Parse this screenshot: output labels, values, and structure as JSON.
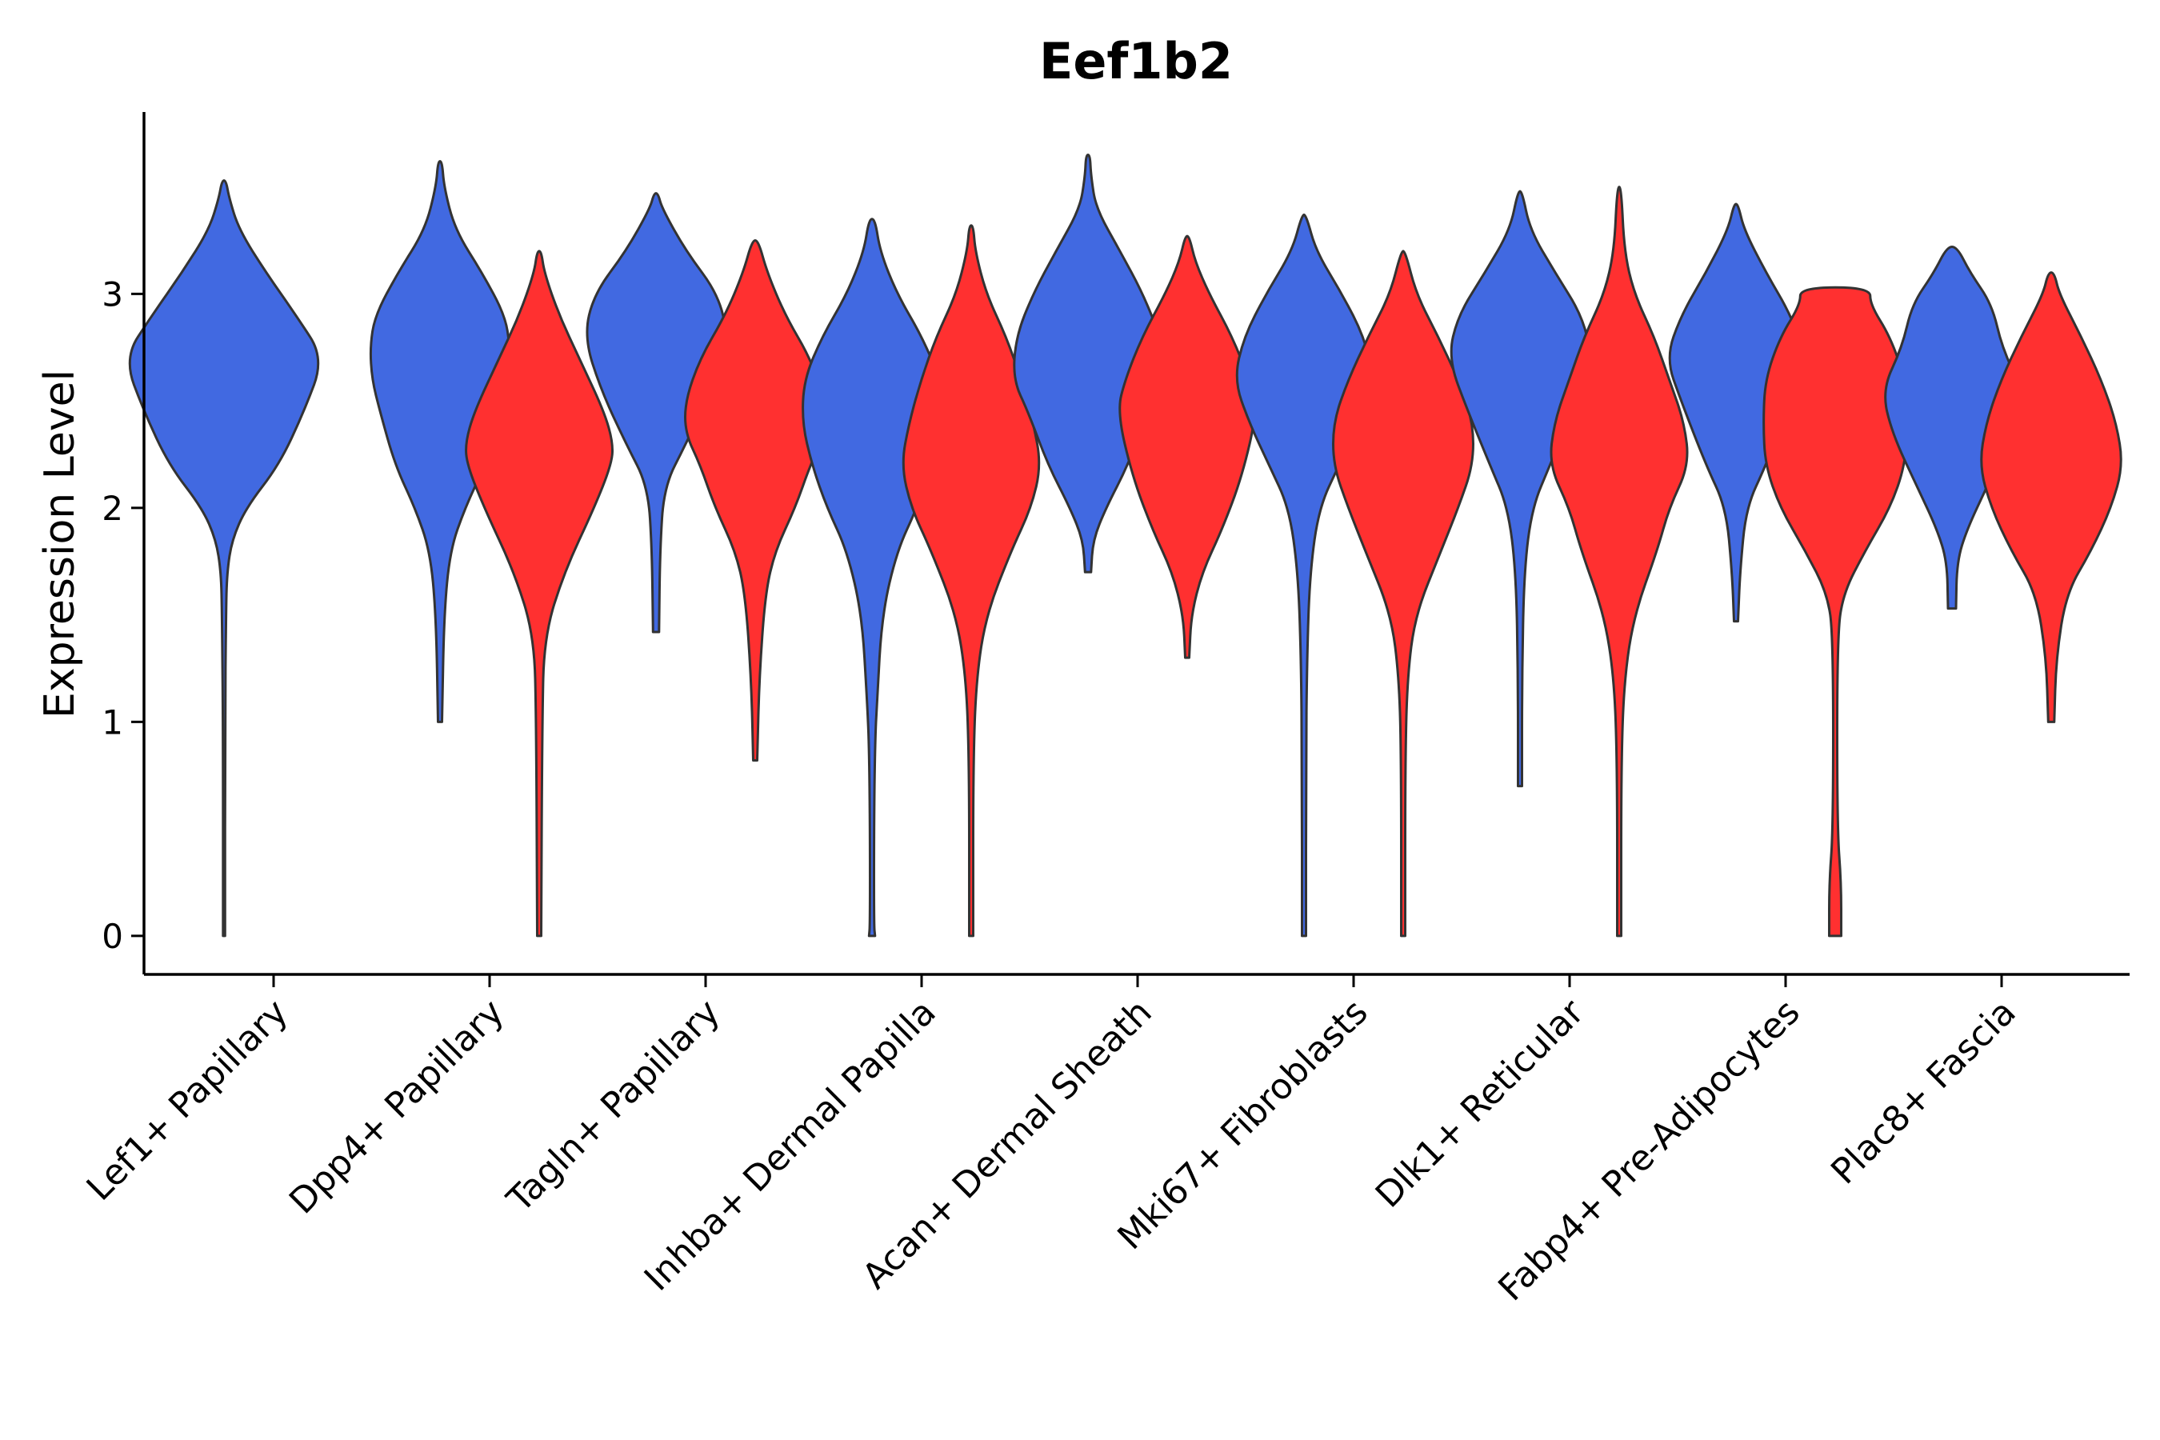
{
  "chart_data": {
    "type": "violin",
    "title": "Eef1b2",
    "xlabel": "",
    "ylabel": "Expression Level",
    "ylim": [
      -0.18,
      3.85
    ],
    "yticks": [
      0,
      1,
      2,
      3
    ],
    "grid": false,
    "legend": "none",
    "group_colors": [
      "#4169E1",
      "#FF3030"
    ],
    "categories": [
      "Lef1+ Papillary",
      "Dpp4+ Papillary",
      "Tagln+ Papillary",
      "Inhba+ Dermal Papilla",
      "Acan+ Dermal Sheath",
      "Mki67+ Fibroblasts",
      "Dlk1+ Reticular",
      "Fabp4+ Pre-Adipocytes",
      "Plac8+ Fascia"
    ],
    "violins": [
      {
        "category": 0,
        "group": 0,
        "min": 0.0,
        "max": 3.53,
        "profile": [
          [
            0,
            0.01
          ],
          [
            1.0,
            0.01
          ],
          [
            1.5,
            0.02
          ],
          [
            1.7,
            0.03
          ],
          [
            1.85,
            0.08
          ],
          [
            2.0,
            0.22
          ],
          [
            2.2,
            0.55
          ],
          [
            2.45,
            0.8
          ],
          [
            2.7,
            1.0
          ],
          [
            2.9,
            0.72
          ],
          [
            3.1,
            0.42
          ],
          [
            3.3,
            0.15
          ],
          [
            3.45,
            0.05
          ],
          [
            3.53,
            0.02
          ]
        ]
      },
      {
        "category": 1,
        "group": 0,
        "min": 1.0,
        "max": 3.62,
        "profile": [
          [
            1.0,
            0.02
          ],
          [
            1.5,
            0.04
          ],
          [
            1.8,
            0.1
          ],
          [
            2.0,
            0.25
          ],
          [
            2.2,
            0.45
          ],
          [
            2.45,
            0.6
          ],
          [
            2.6,
            0.68
          ],
          [
            2.75,
            0.7
          ],
          [
            2.9,
            0.65
          ],
          [
            3.1,
            0.42
          ],
          [
            3.3,
            0.15
          ],
          [
            3.5,
            0.04
          ],
          [
            3.62,
            0.02
          ]
        ]
      },
      {
        "category": 1,
        "group": 1,
        "min": 0.0,
        "max": 3.2,
        "profile": [
          [
            0,
            0.02
          ],
          [
            1.0,
            0.03
          ],
          [
            1.4,
            0.05
          ],
          [
            1.7,
            0.25
          ],
          [
            2.0,
            0.55
          ],
          [
            2.2,
            0.72
          ],
          [
            2.3,
            0.74
          ],
          [
            2.45,
            0.65
          ],
          [
            2.7,
            0.4
          ],
          [
            2.9,
            0.2
          ],
          [
            3.1,
            0.05
          ],
          [
            3.2,
            0.02
          ]
        ]
      },
      {
        "category": 2,
        "group": 0,
        "min": 1.42,
        "max": 3.47,
        "profile": [
          [
            1.42,
            0.03
          ],
          [
            1.8,
            0.04
          ],
          [
            2.1,
            0.08
          ],
          [
            2.3,
            0.3
          ],
          [
            2.55,
            0.55
          ],
          [
            2.8,
            0.72
          ],
          [
            3.0,
            0.62
          ],
          [
            3.2,
            0.3
          ],
          [
            3.4,
            0.06
          ],
          [
            3.47,
            0.02
          ]
        ]
      },
      {
        "category": 2,
        "group": 1,
        "min": 0.82,
        "max": 3.25,
        "profile": [
          [
            0.82,
            0.02
          ],
          [
            1.2,
            0.04
          ],
          [
            1.6,
            0.1
          ],
          [
            1.8,
            0.2
          ],
          [
            2.0,
            0.4
          ],
          [
            2.2,
            0.55
          ],
          [
            2.35,
            0.7
          ],
          [
            2.5,
            0.7
          ],
          [
            2.7,
            0.55
          ],
          [
            2.9,
            0.3
          ],
          [
            3.1,
            0.12
          ],
          [
            3.25,
            0.03
          ]
        ]
      },
      {
        "category": 3,
        "group": 0,
        "min": 0.0,
        "max": 3.35,
        "profile": [
          [
            0,
            0.03
          ],
          [
            0.05,
            0.02
          ],
          [
            0.5,
            0.02
          ],
          [
            0.9,
            0.03
          ],
          [
            1.1,
            0.05
          ],
          [
            1.5,
            0.1
          ],
          [
            1.8,
            0.25
          ],
          [
            2.0,
            0.45
          ],
          [
            2.2,
            0.6
          ],
          [
            2.4,
            0.7
          ],
          [
            2.6,
            0.68
          ],
          [
            2.8,
            0.5
          ],
          [
            3.0,
            0.25
          ],
          [
            3.2,
            0.08
          ],
          [
            3.35,
            0.03
          ]
        ]
      },
      {
        "category": 3,
        "group": 1,
        "min": 0.0,
        "max": 3.32,
        "profile": [
          [
            0,
            0.02
          ],
          [
            0.05,
            0.02
          ],
          [
            0.8,
            0.02
          ],
          [
            1.2,
            0.05
          ],
          [
            1.5,
            0.15
          ],
          [
            1.8,
            0.4
          ],
          [
            2.0,
            0.6
          ],
          [
            2.2,
            0.7
          ],
          [
            2.4,
            0.62
          ],
          [
            2.6,
            0.5
          ],
          [
            2.8,
            0.35
          ],
          [
            3.0,
            0.15
          ],
          [
            3.2,
            0.04
          ],
          [
            3.32,
            0.02
          ]
        ]
      },
      {
        "category": 4,
        "group": 0,
        "min": 1.7,
        "max": 3.65,
        "profile": [
          [
            1.7,
            0.03
          ],
          [
            1.85,
            0.05
          ],
          [
            2.0,
            0.18
          ],
          [
            2.2,
            0.4
          ],
          [
            2.45,
            0.6
          ],
          [
            2.6,
            0.75
          ],
          [
            2.8,
            0.72
          ],
          [
            3.0,
            0.55
          ],
          [
            3.2,
            0.32
          ],
          [
            3.4,
            0.08
          ],
          [
            3.55,
            0.03
          ],
          [
            3.65,
            0.02
          ]
        ]
      },
      {
        "category": 4,
        "group": 1,
        "min": 1.3,
        "max": 3.27,
        "profile": [
          [
            1.3,
            0.02
          ],
          [
            1.5,
            0.04
          ],
          [
            1.7,
            0.15
          ],
          [
            1.9,
            0.35
          ],
          [
            2.15,
            0.55
          ],
          [
            2.45,
            0.7
          ],
          [
            2.6,
            0.62
          ],
          [
            2.8,
            0.45
          ],
          [
            3.0,
            0.22
          ],
          [
            3.15,
            0.08
          ],
          [
            3.27,
            0.02
          ]
        ]
      },
      {
        "category": 5,
        "group": 0,
        "min": 0.0,
        "max": 3.37,
        "profile": [
          [
            0,
            0.02
          ],
          [
            0.8,
            0.02
          ],
          [
            1.3,
            0.03
          ],
          [
            1.7,
            0.06
          ],
          [
            2.0,
            0.15
          ],
          [
            2.2,
            0.35
          ],
          [
            2.4,
            0.55
          ],
          [
            2.6,
            0.7
          ],
          [
            2.8,
            0.6
          ],
          [
            3.0,
            0.38
          ],
          [
            3.2,
            0.12
          ],
          [
            3.37,
            0.02
          ]
        ]
      },
      {
        "category": 5,
        "group": 1,
        "min": 0.0,
        "max": 3.2,
        "profile": [
          [
            0,
            0.02
          ],
          [
            0.8,
            0.02
          ],
          [
            1.2,
            0.04
          ],
          [
            1.5,
            0.12
          ],
          [
            1.8,
            0.38
          ],
          [
            2.0,
            0.55
          ],
          [
            2.2,
            0.7
          ],
          [
            2.4,
            0.7
          ],
          [
            2.6,
            0.55
          ],
          [
            2.8,
            0.35
          ],
          [
            3.0,
            0.13
          ],
          [
            3.2,
            0.02
          ]
        ]
      },
      {
        "category": 6,
        "group": 0,
        "min": 0.7,
        "max": 3.48,
        "profile": [
          [
            0.7,
            0.02
          ],
          [
            1.2,
            0.02
          ],
          [
            1.7,
            0.04
          ],
          [
            2.0,
            0.12
          ],
          [
            2.2,
            0.3
          ],
          [
            2.45,
            0.52
          ],
          [
            2.7,
            0.72
          ],
          [
            2.9,
            0.62
          ],
          [
            3.1,
            0.35
          ],
          [
            3.3,
            0.1
          ],
          [
            3.48,
            0.02
          ]
        ]
      },
      {
        "category": 6,
        "group": 1,
        "min": 0.0,
        "max": 3.5,
        "profile": [
          [
            0,
            0.02
          ],
          [
            0.8,
            0.02
          ],
          [
            1.2,
            0.05
          ],
          [
            1.5,
            0.15
          ],
          [
            1.8,
            0.38
          ],
          [
            2.0,
            0.5
          ],
          [
            2.2,
            0.7
          ],
          [
            2.4,
            0.65
          ],
          [
            2.6,
            0.5
          ],
          [
            2.8,
            0.35
          ],
          [
            3.0,
            0.15
          ],
          [
            3.2,
            0.05
          ],
          [
            3.5,
            0.02
          ]
        ]
      },
      {
        "category": 7,
        "group": 0,
        "min": 1.47,
        "max": 3.42,
        "profile": [
          [
            1.47,
            0.02
          ],
          [
            1.7,
            0.04
          ],
          [
            2.0,
            0.1
          ],
          [
            2.2,
            0.3
          ],
          [
            2.5,
            0.55
          ],
          [
            2.7,
            0.7
          ],
          [
            2.9,
            0.55
          ],
          [
            3.1,
            0.3
          ],
          [
            3.3,
            0.08
          ],
          [
            3.42,
            0.02
          ]
        ]
      },
      {
        "category": 7,
        "group": 1,
        "min": 0.0,
        "max": 3.03,
        "profile": [
          [
            0,
            0.06
          ],
          [
            0.25,
            0.06
          ],
          [
            0.5,
            0.02
          ],
          [
            1.4,
            0.02
          ],
          [
            1.6,
            0.08
          ],
          [
            1.8,
            0.3
          ],
          [
            2.0,
            0.55
          ],
          [
            2.2,
            0.7
          ],
          [
            2.4,
            0.72
          ],
          [
            2.6,
            0.7
          ],
          [
            2.8,
            0.55
          ],
          [
            2.95,
            0.35
          ],
          [
            3.03,
            0.35
          ]
        ]
      },
      {
        "category": 8,
        "group": 0,
        "min": 1.53,
        "max": 3.22,
        "profile": [
          [
            1.53,
            0.04
          ],
          [
            1.75,
            0.05
          ],
          [
            1.9,
            0.15
          ],
          [
            2.1,
            0.35
          ],
          [
            2.35,
            0.6
          ],
          [
            2.55,
            0.7
          ],
          [
            2.75,
            0.5
          ],
          [
            2.95,
            0.4
          ],
          [
            3.1,
            0.18
          ],
          [
            3.22,
            0.05
          ]
        ]
      },
      {
        "category": 8,
        "group": 1,
        "min": 1.0,
        "max": 3.1,
        "profile": [
          [
            1.0,
            0.03
          ],
          [
            1.3,
            0.05
          ],
          [
            1.6,
            0.15
          ],
          [
            1.8,
            0.4
          ],
          [
            2.0,
            0.6
          ],
          [
            2.2,
            0.72
          ],
          [
            2.4,
            0.65
          ],
          [
            2.6,
            0.5
          ],
          [
            2.8,
            0.3
          ],
          [
            3.0,
            0.08
          ],
          [
            3.1,
            0.03
          ]
        ]
      }
    ]
  }
}
